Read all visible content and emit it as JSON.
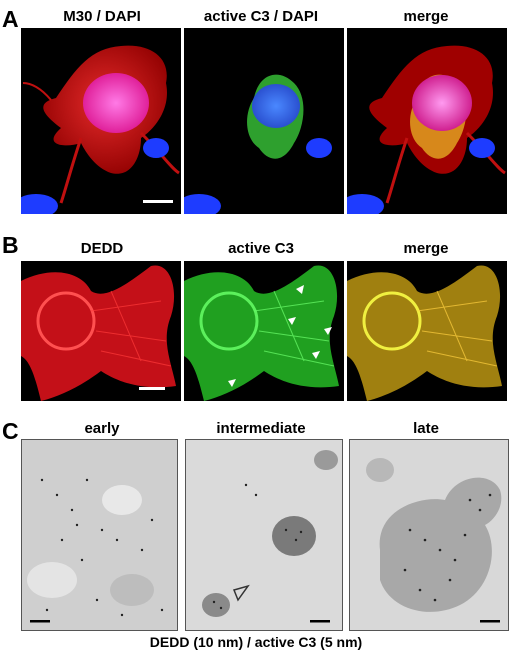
{
  "figure": {
    "rowA": {
      "label": "A",
      "panels": [
        {
          "title": "M30 / DAPI"
        },
        {
          "title": "active C3 / DAPI"
        },
        {
          "title": "merge"
        }
      ]
    },
    "rowB": {
      "label": "B",
      "panels": [
        {
          "title": "DEDD"
        },
        {
          "title": "active C3"
        },
        {
          "title": "merge"
        }
      ]
    },
    "rowC": {
      "label": "C",
      "panels": [
        {
          "title": "early"
        },
        {
          "title": "intermediate"
        },
        {
          "title": "late"
        }
      ],
      "caption": "DEDD (10 nm) / active C3 (5 nm)"
    }
  },
  "colors": {
    "fluor_background": "#000000",
    "red_channel": "#ff2a2a",
    "green_channel": "#3ddc3d",
    "blue_channel": "#2040ff",
    "em_background": "#d6d6d6"
  }
}
